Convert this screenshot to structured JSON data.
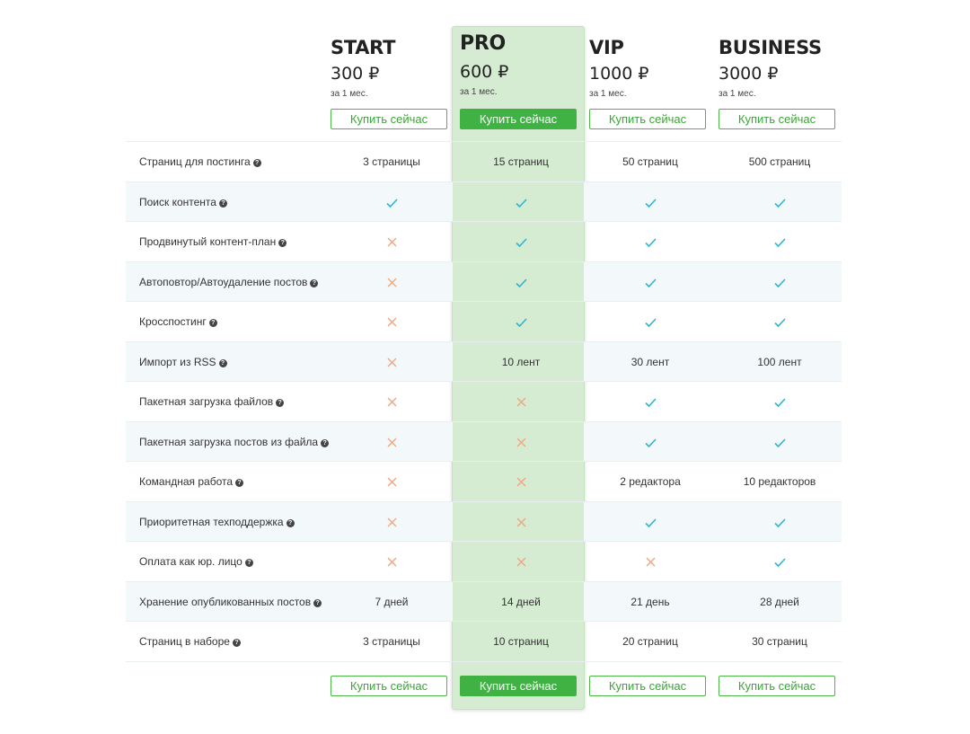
{
  "plans": [
    {
      "name": "START",
      "price": "300 ₽",
      "period": "за 1 мес.",
      "button": "Купить сейчас"
    },
    {
      "name": "PRO",
      "price": "600 ₽",
      "period": "за 1 мес.",
      "button": "Купить сейчас"
    },
    {
      "name": "VIP",
      "price": "1000 ₽",
      "period": "за 1 мес.",
      "button": "Купить сейчас"
    },
    {
      "name": "BUSINESS",
      "price": "3000 ₽",
      "period": "за 1 мес.",
      "button": "Купить сейчас"
    }
  ],
  "features": [
    {
      "label": "Страниц для постинга",
      "values": [
        "3 страницы",
        "15 страниц",
        "50 страниц",
        "500 страниц"
      ]
    },
    {
      "label": "Поиск контента",
      "values": [
        "check",
        "check",
        "check",
        "check"
      ]
    },
    {
      "label": "Продвинутый контент-план",
      "values": [
        "cross",
        "check",
        "check",
        "check"
      ]
    },
    {
      "label": "Автоповтор/Автоудаление постов",
      "values": [
        "cross",
        "check",
        "check",
        "check"
      ]
    },
    {
      "label": "Кросспостинг",
      "values": [
        "cross",
        "check",
        "check",
        "check"
      ]
    },
    {
      "label": "Импорт из RSS",
      "values": [
        "cross",
        "10 лент",
        "30 лент",
        "100 лент"
      ]
    },
    {
      "label": "Пакетная загрузка файлов",
      "values": [
        "cross",
        "cross",
        "check",
        "check"
      ]
    },
    {
      "label": "Пакетная загрузка постов из файла",
      "values": [
        "cross",
        "cross",
        "check",
        "check"
      ]
    },
    {
      "label": "Командная работа",
      "values": [
        "cross",
        "cross",
        "2 редактора",
        "10 редакторов"
      ]
    },
    {
      "label": "Приоритетная техподдержка",
      "values": [
        "cross",
        "cross",
        "check",
        "check"
      ]
    },
    {
      "label": "Оплата как юр. лицо",
      "values": [
        "cross",
        "cross",
        "cross",
        "check"
      ]
    },
    {
      "label": "Хранение опубликованных постов",
      "values": [
        "7 дней",
        "14 дней",
        "21 день",
        "28 дней"
      ]
    },
    {
      "label": "Страниц в наборе",
      "values": [
        "3 страницы",
        "10 страниц",
        "20 страниц",
        "30 страниц"
      ]
    }
  ],
  "icons": {
    "help": "question-circle-icon",
    "check": "checkmark-icon",
    "cross": "cross-icon"
  },
  "colors": {
    "accent": "#3fb243",
    "pro_highlight": "#d5ecd2",
    "check": "#29b8cf",
    "cross": "#f0a47a",
    "alt_row": "#f3f8fa"
  }
}
